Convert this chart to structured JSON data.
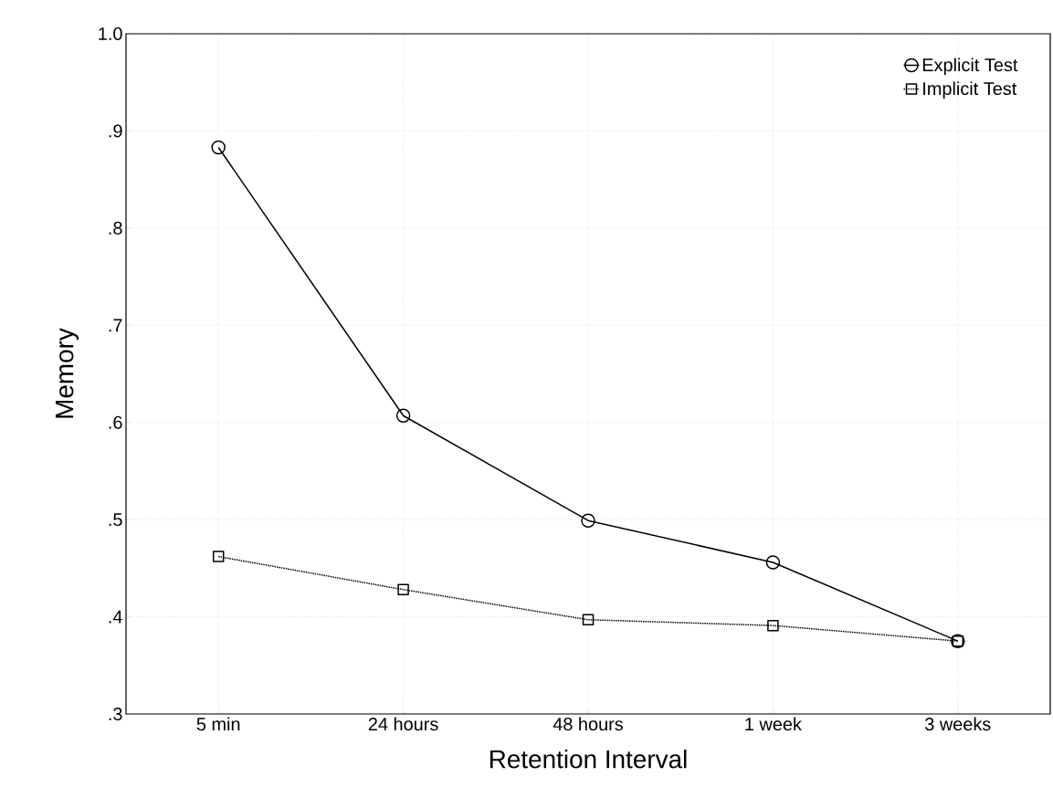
{
  "chart_data": {
    "type": "line",
    "xlabel": "Retention Interval",
    "ylabel": "Memory",
    "categories": [
      "5 min",
      "24 hours",
      "48 hours",
      "1 week",
      "3 weeks"
    ],
    "series": [
      {
        "name": "Explicit Test",
        "color": "#000000",
        "marker": "circle",
        "line_style": "solid",
        "values": [
          0.883,
          0.607,
          0.499,
          0.456,
          0.375
        ]
      },
      {
        "name": "Implicit Test",
        "color": "#000000",
        "marker": "square",
        "line_style": "dotted",
        "values": [
          0.462,
          0.428,
          0.397,
          0.391,
          0.375
        ]
      }
    ],
    "ylim": [
      0.3,
      1.0
    ],
    "yticks": [
      {
        "value": 0.3,
        "label": ".3"
      },
      {
        "value": 0.4,
        "label": ".4"
      },
      {
        "value": 0.5,
        "label": ".5"
      },
      {
        "value": 0.6,
        "label": ".6"
      },
      {
        "value": 0.7,
        "label": ".7"
      },
      {
        "value": 0.8,
        "label": ".8"
      },
      {
        "value": 0.9,
        "label": ".9"
      },
      {
        "value": 1.0,
        "label": "1.0"
      }
    ],
    "grid": true,
    "legend": "top right"
  }
}
